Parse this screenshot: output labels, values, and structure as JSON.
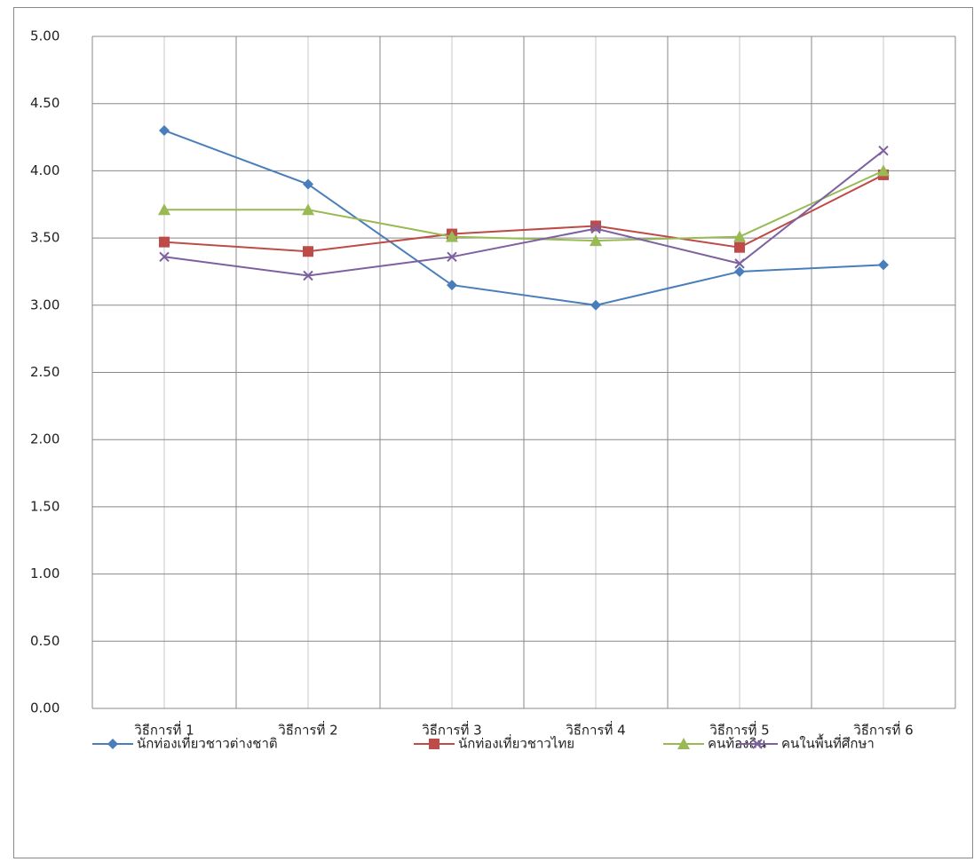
{
  "chart_data": {
    "type": "line",
    "categories": [
      "วิธีการที่ 1",
      "วิธีการที่ 2",
      "วิธีการที่ 3",
      "วิธีการที่ 4",
      "วิธีการที่ 5",
      "วิธีการที่ 6"
    ],
    "series": [
      {
        "name": "นักท่องเที่ยวชาวต่างชาติ",
        "color": "#4a7ebb",
        "marker": "diamond",
        "values": [
          4.3,
          3.9,
          3.15,
          3.0,
          3.25,
          3.3
        ]
      },
      {
        "name": "นักท่องเที่ยวชาวไทย",
        "color": "#be4b48",
        "marker": "square",
        "values": [
          3.47,
          3.4,
          3.53,
          3.59,
          3.43,
          3.97
        ]
      },
      {
        "name": "คนท้องถิ่น",
        "color": "#98b954",
        "marker": "triangle",
        "values": [
          3.71,
          3.71,
          3.51,
          3.48,
          3.51,
          4.0
        ]
      },
      {
        "name": "คนในพื้นที่ศึกษา",
        "color": "#7d60a0",
        "marker": "x",
        "values": [
          3.36,
          3.22,
          3.36,
          3.57,
          3.31,
          4.15
        ]
      }
    ],
    "ylim": [
      0,
      5
    ],
    "yticks": [
      {
        "value": 0,
        "label": "0.00"
      },
      {
        "value": 0.5,
        "label": "0.50"
      },
      {
        "value": 1,
        "label": "1.00"
      },
      {
        "value": 1.5,
        "label": "1.50"
      },
      {
        "value": 2,
        "label": "2.00"
      },
      {
        "value": 2.5,
        "label": "2.50"
      },
      {
        "value": 3,
        "label": "3.00"
      },
      {
        "value": 3.5,
        "label": "3.50"
      },
      {
        "value": 4,
        "label": "4.00"
      },
      {
        "value": 4.5,
        "label": "4.50"
      },
      {
        "value": 5,
        "label": "5.00"
      }
    ],
    "grid": true,
    "legend": "bottom"
  }
}
